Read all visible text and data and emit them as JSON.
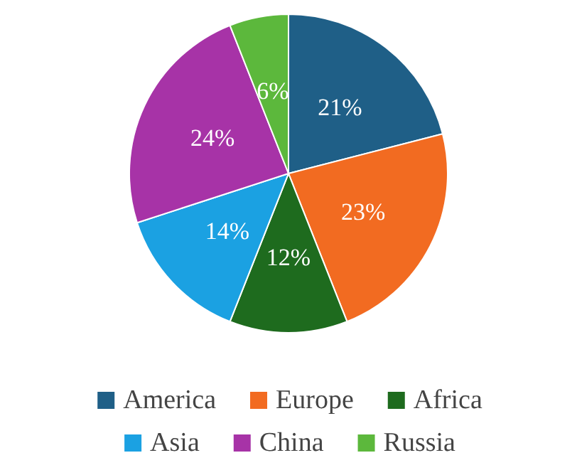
{
  "chart_data": {
    "type": "pie",
    "categories": [
      "America",
      "Europe",
      "Africa",
      "Asia",
      "China",
      "Russia"
    ],
    "values": [
      21,
      23,
      12,
      14,
      24,
      6
    ],
    "value_labels": [
      "21%",
      "23%",
      "12%",
      "14%",
      "24%",
      "6%"
    ],
    "colors": [
      "#1f5f87",
      "#f26b21",
      "#1e6b1e",
      "#1ba1e2",
      "#a733a7",
      "#5cb83c"
    ],
    "legend": "bottom"
  }
}
